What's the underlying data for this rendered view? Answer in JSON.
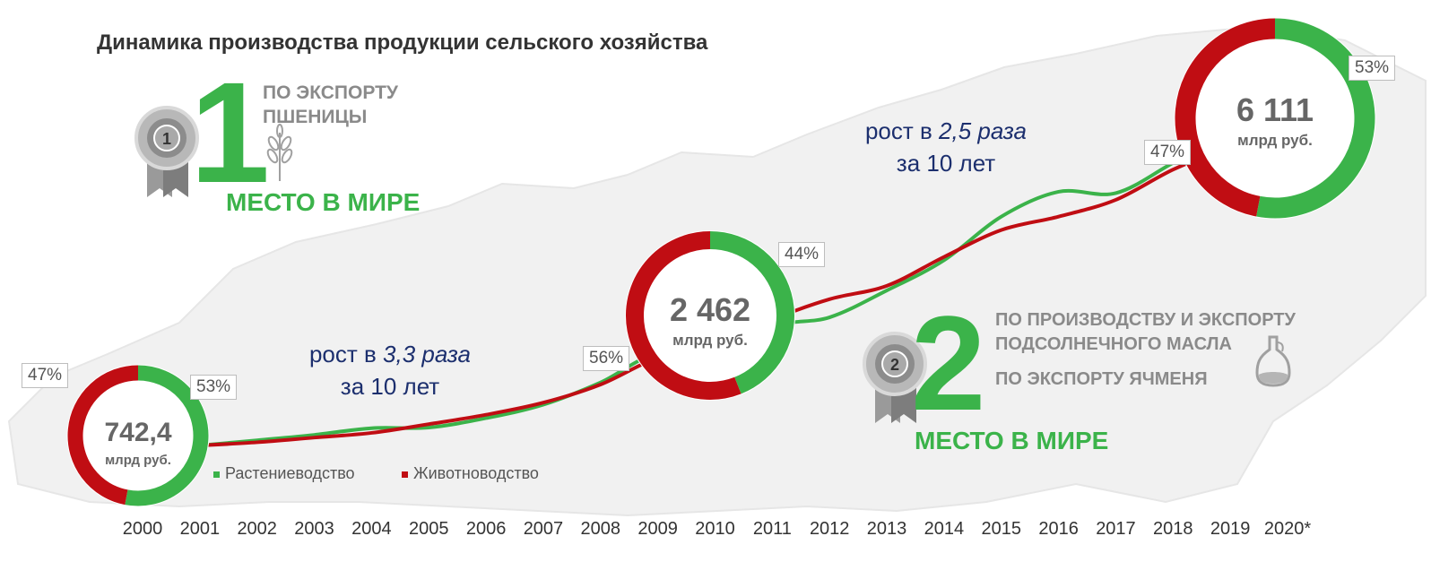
{
  "title": "Динамика производства продукции сельского хозяйства",
  "rank1": {
    "number": "1",
    "caption_lines": [
      "ПО ЭКСПОРТУ",
      "ПШЕНИЦЫ"
    ],
    "place": "МЕСТО В МИРЕ"
  },
  "rank2": {
    "number": "2",
    "caption_lines": [
      "ПО ПРОИЗВОДСТВУ И ЭКСПОРТУ",
      "ПОДСОЛНЕЧНОГО МАСЛА"
    ],
    "caption_extra": "ПО ЭКСПОРТУ ЯЧМЕНЯ",
    "place": "МЕСТО В МИРЕ"
  },
  "growth_1": {
    "prefix": "рост в ",
    "factor": "3,3 раза",
    "line2": "за 10 лет"
  },
  "growth_2": {
    "prefix": "рост в ",
    "factor": "2,5 раза",
    "line2": "за 10 лет"
  },
  "colors": {
    "green": "#3bb34a",
    "red": "#c00d13",
    "title": "#333333",
    "growth_text": "#1c2f6e",
    "gray_text": "#8a8a8a"
  },
  "icons": [
    "medal-1-icon",
    "wheat-icon",
    "medal-2-icon",
    "oil-bottle-icon"
  ],
  "chart_data": {
    "type": "line",
    "x": [
      "2000",
      "2001",
      "2002",
      "2003",
      "2004",
      "2005",
      "2006",
      "2007",
      "2008",
      "2009",
      "2010",
      "2011",
      "2012",
      "2013",
      "2014",
      "2015",
      "2016",
      "2017",
      "2018",
      "2019",
      "2020*"
    ],
    "series": [
      {
        "name": "Растениеводство",
        "color": "#3bb34a",
        "values": [
          null,
          742.4,
          820,
          900,
          1000,
          1010,
          1150,
          1350,
          1680,
          2100,
          1900,
          2500,
          2650,
          3050,
          3500,
          4150,
          4520,
          4500,
          4950,
          5400,
          null
        ]
      },
      {
        "name": "Животноводство",
        "color": "#c00d13",
        "values": [
          null,
          742.4,
          790,
          860,
          930,
          1060,
          1200,
          1380,
          1650,
          2050,
          2250,
          2620,
          2920,
          3120,
          3550,
          3950,
          4150,
          4400,
          4850,
          5200,
          null
        ]
      }
    ],
    "totals": [
      {
        "year": "2000",
        "value": "742,4",
        "unit": "млрд руб.",
        "share_livestock": "47%",
        "share_crops": "53%"
      },
      {
        "year": "2010",
        "value": "2 462",
        "unit": "млрд руб.",
        "share_livestock": "56%",
        "share_crops": "44%"
      },
      {
        "year": "2020*",
        "value": "6 111",
        "unit": "млрд руб.",
        "share_livestock": "47%",
        "share_crops": "53%"
      }
    ],
    "xlabel": "",
    "ylabel": "",
    "grid": false,
    "legend_position": "bottom-left"
  }
}
